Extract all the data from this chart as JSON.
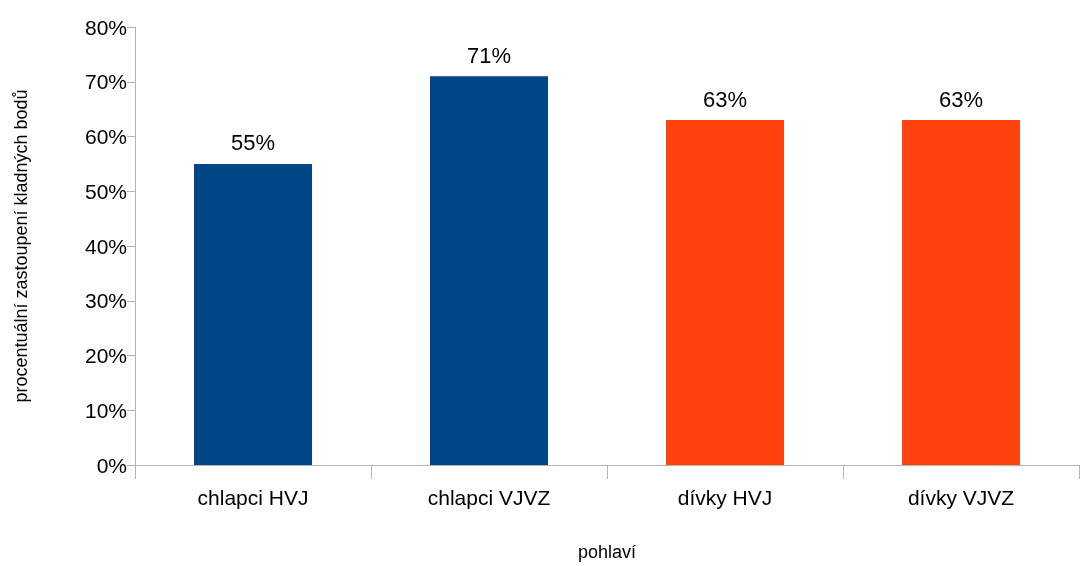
{
  "chart_data": {
    "type": "bar",
    "xlabel": "pohlaví",
    "ylabel": "procentuální zastoupení kladných bodů",
    "categories": [
      "chlapci HVJ",
      "chlapci VJVZ",
      "dívky HVJ",
      "dívky VJVZ"
    ],
    "values": [
      55,
      71,
      63,
      63
    ],
    "colors": [
      "#004586",
      "#004586",
      "#ff420e",
      "#ff420e"
    ],
    "value_labels": [
      "55%",
      "71%",
      "63%",
      "63%"
    ],
    "ylim": [
      0,
      80
    ],
    "yticks": [
      {
        "value": 0,
        "label": "0%"
      },
      {
        "value": 10,
        "label": "10%"
      },
      {
        "value": 20,
        "label": "20%"
      },
      {
        "value": 30,
        "label": "30%"
      },
      {
        "value": 40,
        "label": "40%"
      },
      {
        "value": 50,
        "label": "50%"
      },
      {
        "value": 60,
        "label": "60%"
      },
      {
        "value": 70,
        "label": "70%"
      },
      {
        "value": 80,
        "label": "80%"
      }
    ],
    "grid": false
  }
}
